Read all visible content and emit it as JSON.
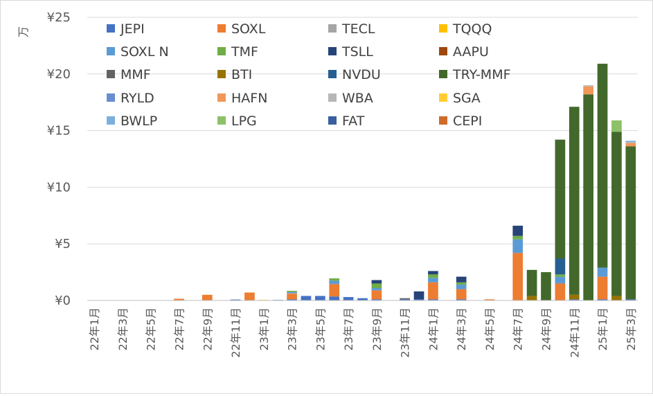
{
  "chart_data": {
    "type": "bar",
    "stacked": true,
    "y_unit_label": "万",
    "ylim": [
      0,
      25
    ],
    "y_ticks": [
      0,
      5,
      10,
      15,
      20,
      25
    ],
    "y_tick_labels": [
      "¥0",
      "¥5",
      "¥10",
      "¥15",
      "¥20",
      "¥25"
    ],
    "grid": true,
    "legend_position": "top",
    "categories": [
      "22年1月",
      "22年2月",
      "22年3月",
      "22年4月",
      "22年5月",
      "22年6月",
      "22年7月",
      "22年8月",
      "22年9月",
      "22年10月",
      "22年11月",
      "22年12月",
      "23年1月",
      "23年2月",
      "23年3月",
      "23年4月",
      "23年5月",
      "23年6月",
      "23年7月",
      "23年8月",
      "23年9月",
      "23年10月",
      "23年11月",
      "23年12月",
      "24年1月",
      "24年2月",
      "24年3月",
      "24年4月",
      "24年5月",
      "24年6月",
      "24年7月",
      "24年8月",
      "24年9月",
      "24年10月",
      "24年11月",
      "24年12月",
      "25年1月",
      "25年2月",
      "25年3月"
    ],
    "shown_tick_labels": [
      "22年1月",
      "22年3月",
      "22年5月",
      "22年7月",
      "22年9月",
      "22年11月",
      "23年1月",
      "23年3月",
      "23年5月",
      "23年7月",
      "23年9月",
      "23年11月",
      "24年1月",
      "24年3月",
      "24年5月",
      "24年7月",
      "24年9月",
      "24年11月",
      "25年1月",
      "25年3月"
    ],
    "series": [
      {
        "name": "JEPI",
        "color": "#4472c4",
        "values": [
          0,
          0,
          0,
          0,
          0,
          0,
          0,
          0,
          0,
          0,
          0.08,
          0,
          0,
          0.05,
          0.1,
          0.4,
          0.4,
          0.35,
          0.3,
          0.2,
          0.1,
          0,
          0.1,
          0.1,
          0.1,
          0,
          0.1,
          0,
          0,
          0,
          0,
          0,
          0,
          0,
          0.1,
          0,
          0.1,
          0,
          0.1
        ]
      },
      {
        "name": "SOXL",
        "color": "#ed7d31",
        "values": [
          0,
          0,
          0,
          0,
          0,
          0,
          0.15,
          0,
          0.5,
          0,
          0,
          0.7,
          0,
          0,
          0.5,
          0,
          0,
          1.1,
          0,
          0,
          0.8,
          0,
          0,
          0,
          1.5,
          0,
          0.9,
          0,
          0.1,
          0,
          4.2,
          0,
          0,
          1.5,
          0,
          0,
          2.0,
          0,
          0
        ]
      },
      {
        "name": "TECL",
        "color": "#a5a5a5",
        "values": [
          0,
          0,
          0,
          0,
          0,
          0,
          0,
          0,
          0,
          0,
          0,
          0,
          0,
          0,
          0.05,
          0,
          0,
          0,
          0,
          0,
          0,
          0,
          0,
          0,
          0,
          0,
          0,
          0,
          0,
          0,
          0,
          0,
          0,
          0,
          0,
          0,
          0,
          0,
          0
        ]
      },
      {
        "name": "TQQQ",
        "color": "#ffc000",
        "values": [
          0,
          0,
          0,
          0,
          0,
          0,
          0,
          0,
          0,
          0,
          0,
          0,
          0.05,
          0,
          0,
          0,
          0,
          0,
          0,
          0,
          0,
          0,
          0,
          0,
          0,
          0,
          0,
          0,
          0,
          0,
          0,
          0,
          0,
          0,
          0,
          0,
          0,
          0,
          0
        ]
      },
      {
        "name": "SOXL N",
        "color": "#5b9bd5",
        "values": [
          0,
          0,
          0,
          0,
          0,
          0,
          0,
          0,
          0,
          0,
          0,
          0,
          0,
          0,
          0.1,
          0,
          0,
          0.3,
          0,
          0,
          0.2,
          0,
          0,
          0,
          0.4,
          0,
          0.4,
          0,
          0,
          0,
          1.2,
          0,
          0,
          0.6,
          0,
          0,
          0.8,
          0,
          0
        ]
      },
      {
        "name": "TMF",
        "color": "#70ad47",
        "values": [
          0,
          0,
          0,
          0,
          0,
          0,
          0,
          0,
          0,
          0,
          0,
          0,
          0,
          0,
          0.1,
          0,
          0,
          0.2,
          0,
          0,
          0.4,
          0,
          0,
          0,
          0.3,
          0,
          0.2,
          0,
          0,
          0,
          0.3,
          0,
          0,
          0.2,
          0,
          0,
          0,
          0,
          0
        ]
      },
      {
        "name": "TSLL",
        "color": "#264478",
        "values": [
          0,
          0,
          0,
          0,
          0,
          0,
          0,
          0,
          0,
          0,
          0,
          0,
          0,
          0,
          0,
          0,
          0,
          0,
          0,
          0,
          0.3,
          0,
          0,
          0.7,
          0.3,
          0,
          0.5,
          0,
          0,
          0,
          0.9,
          0,
          0,
          0,
          0,
          0,
          0,
          0,
          0
        ]
      },
      {
        "name": "AAPU",
        "color": "#9e480e",
        "values": [
          0,
          0,
          0,
          0,
          0,
          0,
          0,
          0,
          0,
          0,
          0,
          0,
          0,
          0,
          0,
          0,
          0,
          0,
          0,
          0,
          0,
          0,
          0,
          0,
          0,
          0,
          0,
          0,
          0,
          0,
          0,
          0,
          0,
          0,
          0,
          0,
          0,
          0,
          0
        ]
      },
      {
        "name": "MMF",
        "color": "#636363",
        "values": [
          0,
          0,
          0,
          0,
          0,
          0,
          0,
          0,
          0,
          0,
          0,
          0,
          0,
          0,
          0,
          0,
          0,
          0,
          0,
          0,
          0,
          0,
          0.1,
          0,
          0,
          0,
          0,
          0,
          0,
          0,
          0,
          0,
          0,
          0,
          0,
          0,
          0,
          0,
          0
        ]
      },
      {
        "name": "BTI",
        "color": "#997300",
        "values": [
          0,
          0,
          0,
          0,
          0,
          0,
          0,
          0,
          0,
          0,
          0,
          0,
          0,
          0,
          0,
          0,
          0,
          0,
          0,
          0,
          0,
          0,
          0,
          0,
          0,
          0,
          0,
          0,
          0,
          0,
          0,
          0.4,
          0,
          0,
          0.4,
          0,
          0,
          0.4,
          0
        ]
      },
      {
        "name": "NVDU",
        "color": "#255e91",
        "values": [
          0,
          0,
          0,
          0,
          0,
          0,
          0,
          0,
          0,
          0,
          0,
          0,
          0,
          0,
          0,
          0,
          0,
          0,
          0,
          0,
          0,
          0,
          0,
          0,
          0,
          0,
          0,
          0,
          0,
          0,
          0,
          0,
          0,
          1.4,
          0,
          0,
          0,
          0,
          0
        ]
      },
      {
        "name": "TRY-MMF",
        "color": "#43682b",
        "values": [
          0,
          0,
          0,
          0,
          0,
          0,
          0,
          0,
          0,
          0,
          0,
          0,
          0,
          0,
          0,
          0,
          0,
          0,
          0,
          0,
          0,
          0,
          0,
          0,
          0,
          0,
          0,
          0,
          0,
          0,
          0,
          2.3,
          2.5,
          10.5,
          16.6,
          18.2,
          18.0,
          14.5,
          13.5
        ]
      },
      {
        "name": "RYLD",
        "color": "#698ed0",
        "values": [
          0,
          0,
          0,
          0,
          0,
          0,
          0,
          0,
          0,
          0,
          0,
          0,
          0,
          0,
          0,
          0,
          0,
          0,
          0,
          0,
          0,
          0,
          0,
          0,
          0,
          0,
          0,
          0,
          0,
          0,
          0,
          0,
          0,
          0,
          0,
          0,
          0,
          0,
          0
        ]
      },
      {
        "name": "HAFN",
        "color": "#f1975a",
        "values": [
          0,
          0,
          0,
          0,
          0,
          0,
          0,
          0,
          0,
          0,
          0,
          0,
          0,
          0,
          0,
          0,
          0,
          0,
          0,
          0,
          0,
          0,
          0,
          0,
          0,
          0,
          0,
          0,
          0,
          0,
          0,
          0,
          0,
          0,
          0,
          0.7,
          0,
          0,
          0.3
        ]
      },
      {
        "name": "WBA",
        "color": "#b7b7b7",
        "values": [
          0,
          0,
          0,
          0,
          0,
          0,
          0,
          0,
          0,
          0,
          0,
          0,
          0,
          0,
          0,
          0,
          0,
          0,
          0,
          0,
          0,
          0,
          0,
          0,
          0,
          0,
          0,
          0,
          0,
          0,
          0,
          0,
          0,
          0,
          0,
          0.1,
          0,
          0,
          0.1
        ]
      },
      {
        "name": "SGA",
        "color": "#ffcd33",
        "values": [
          0,
          0,
          0,
          0,
          0,
          0,
          0,
          0,
          0,
          0,
          0,
          0,
          0,
          0,
          0,
          0,
          0,
          0,
          0,
          0,
          0,
          0,
          0,
          0,
          0,
          0,
          0,
          0,
          0,
          0,
          0,
          0,
          0,
          0,
          0,
          0,
          0,
          0,
          0
        ]
      },
      {
        "name": "BWLP",
        "color": "#7cafdd",
        "values": [
          0,
          0,
          0,
          0,
          0,
          0,
          0,
          0,
          0,
          0,
          0,
          0,
          0,
          0,
          0,
          0,
          0,
          0,
          0,
          0,
          0,
          0,
          0,
          0,
          0,
          0,
          0,
          0,
          0,
          0,
          0,
          0,
          0,
          0,
          0,
          0,
          0,
          0,
          0.1
        ]
      },
      {
        "name": "LPG",
        "color": "#8cc168",
        "values": [
          0,
          0,
          0,
          0,
          0,
          0,
          0,
          0,
          0,
          0,
          0,
          0,
          0,
          0,
          0,
          0,
          0,
          0,
          0,
          0,
          0,
          0,
          0,
          0,
          0,
          0,
          0,
          0,
          0,
          0,
          0,
          0,
          0,
          0,
          0,
          0,
          0,
          1.0,
          0
        ]
      },
      {
        "name": "FAT",
        "color": "#3a5fa0",
        "values": [
          0,
          0,
          0,
          0,
          0,
          0,
          0,
          0,
          0,
          0,
          0,
          0,
          0,
          0,
          0,
          0,
          0,
          0,
          0,
          0,
          0,
          0,
          0,
          0,
          0,
          0,
          0,
          0,
          0,
          0,
          0,
          0,
          0,
          0,
          0,
          0,
          0,
          0,
          0
        ]
      },
      {
        "name": "CEPI",
        "color": "#d06b2a",
        "values": [
          0,
          0,
          0,
          0,
          0,
          0,
          0,
          0,
          0,
          0,
          0,
          0,
          0,
          0,
          0,
          0,
          0,
          0,
          0,
          0,
          0,
          0,
          0,
          0,
          0,
          0,
          0,
          0,
          0,
          0,
          0,
          0,
          0,
          0,
          0,
          0,
          0,
          0,
          0
        ]
      }
    ]
  }
}
